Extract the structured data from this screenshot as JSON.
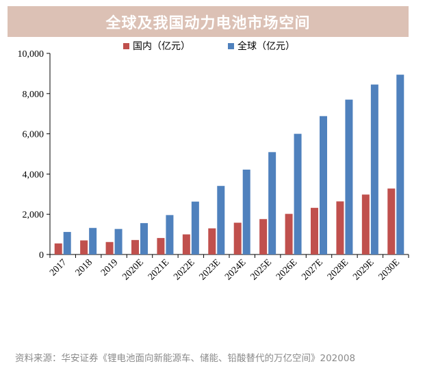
{
  "page": {
    "title": "全球及我国动力电池市场空间",
    "source": "资料来源：华安证券《锂电池面向新能源车、储能、铅酸替代的万亿空间》202008"
  },
  "chart_data": {
    "type": "bar",
    "title": "全球及我国动力电池市场空间",
    "categories": [
      "2017",
      "2018",
      "2019",
      "2020E",
      "2021E",
      "2022E",
      "2023E",
      "2024E",
      "2025E",
      "2026E",
      "2027E",
      "2028E",
      "2029E",
      "2030E"
    ],
    "series": [
      {
        "name": "国内（亿元）",
        "color": "#c0504d",
        "values": [
          550,
          700,
          620,
          720,
          820,
          1000,
          1300,
          1580,
          1760,
          2020,
          2320,
          2640,
          2980,
          3280
        ]
      },
      {
        "name": "全球（亿元）",
        "color": "#4f81bd",
        "values": [
          1120,
          1320,
          1270,
          1560,
          1960,
          2630,
          3410,
          4220,
          5090,
          6000,
          6880,
          7700,
          8450,
          8940
        ]
      }
    ],
    "ylim": [
      0,
      10000
    ],
    "yticks": [
      "0",
      "2,000",
      "4,000",
      "6,000",
      "8,000",
      "10,000"
    ],
    "ytick_values": [
      0,
      2000,
      4000,
      6000,
      8000,
      10000
    ],
    "grid": false,
    "legend_position": "top"
  }
}
